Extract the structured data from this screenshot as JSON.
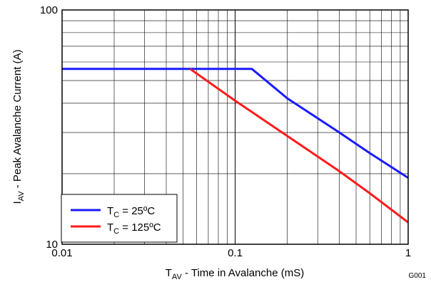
{
  "chart_data": {
    "type": "line",
    "xscale": "log",
    "yscale": "log",
    "xlim": [
      0.01,
      1
    ],
    "ylim": [
      10,
      100
    ],
    "grid": true,
    "legend_position": "bottom-left",
    "xlabel": {
      "main": "T",
      "sub": "AV",
      "rest": " - Time in Avalanche (mS)"
    },
    "ylabel": {
      "main": "I",
      "sub": "AV",
      "rest": " - Peak Avalanche Current (A)"
    },
    "x_ticks": [
      {
        "value": 0.01,
        "label": "0.01"
      },
      {
        "value": 0.1,
        "label": "0.1"
      },
      {
        "value": 1,
        "label": "1"
      }
    ],
    "y_ticks": [
      {
        "value": 10,
        "label": "10"
      },
      {
        "value": 100,
        "label": "100"
      }
    ],
    "series": [
      {
        "name": {
          "main": "T",
          "sub": "C",
          "rest": " = 25ºC"
        },
        "color": "#1a1aff",
        "x": [
          0.01,
          0.125,
          0.2,
          0.4,
          0.6,
          1.0
        ],
        "y": [
          56,
          56,
          42,
          30,
          24.5,
          19.2
        ]
      },
      {
        "name": {
          "main": "T",
          "sub": "C",
          "rest": " = 125ºC"
        },
        "color": "#ff1a1a",
        "x": [
          0.055,
          0.1,
          0.2,
          0.4,
          0.6,
          1.0
        ],
        "y": [
          56,
          41,
          29,
          20.5,
          16.5,
          12.4
        ]
      }
    ],
    "figure_id": "G001"
  }
}
